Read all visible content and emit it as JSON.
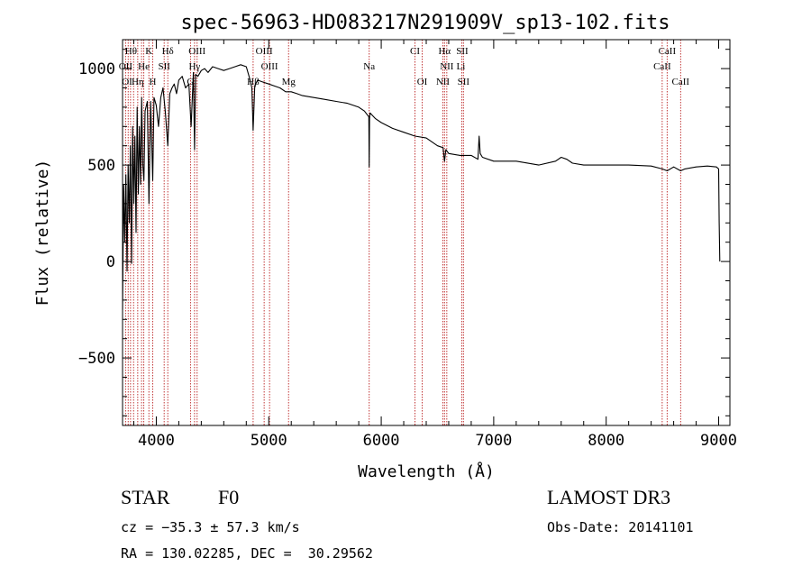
{
  "chart_data": {
    "type": "line",
    "title": "spec-56963-HD083217N291909V_sp13-102.fits",
    "xlabel": "Wavelength (Å)",
    "ylabel": "Flux (relative)",
    "xlim": [
      3700,
      9100
    ],
    "ylim": [
      -850,
      1150
    ],
    "xticks": [
      4000,
      5000,
      6000,
      7000,
      8000,
      9000
    ],
    "yticks": [
      -500,
      0,
      500,
      1000
    ],
    "xtick_labels": [
      "4000",
      "5000",
      "6000",
      "7000",
      "8000",
      "9000"
    ],
    "ytick_labels": [
      "−500",
      "0",
      "500",
      "1000"
    ],
    "series": [
      {
        "name": "flux",
        "color": "#000000",
        "x": [
          3700,
          3710,
          3720,
          3730,
          3740,
          3750,
          3760,
          3770,
          3780,
          3790,
          3800,
          3810,
          3820,
          3830,
          3840,
          3850,
          3860,
          3870,
          3880,
          3890,
          3900,
          3920,
          3935,
          3950,
          3968,
          3980,
          4000,
          4020,
          4040,
          4060,
          4080,
          4102,
          4120,
          4140,
          4160,
          4180,
          4200,
          4230,
          4260,
          4290,
          4310,
          4330,
          4340,
          4350,
          4370,
          4400,
          4430,
          4460,
          4500,
          4550,
          4600,
          4650,
          4700,
          4750,
          4800,
          4830,
          4850,
          4861,
          4875,
          4900,
          4950,
          5000,
          5050,
          5100,
          5150,
          5200,
          5250,
          5300,
          5400,
          5500,
          5600,
          5700,
          5800,
          5850,
          5890,
          5893,
          5896,
          5900,
          5950,
          6000,
          6100,
          6200,
          6300,
          6400,
          6500,
          6550,
          6563,
          6575,
          6600,
          6700,
          6800,
          6860,
          6870,
          6880,
          6900,
          7000,
          7200,
          7400,
          7550,
          7600,
          7650,
          7700,
          7800,
          8000,
          8200,
          8400,
          8498,
          8542,
          8600,
          8662,
          8700,
          8800,
          8900,
          8980,
          9000,
          9005,
          9010
        ],
        "y": [
          -250,
          400,
          100,
          450,
          -50,
          500,
          200,
          600,
          -10,
          700,
          300,
          650,
          150,
          800,
          350,
          700,
          400,
          850,
          500,
          420,
          780,
          830,
          300,
          830,
          420,
          850,
          810,
          700,
          850,
          900,
          780,
          600,
          870,
          900,
          920,
          870,
          940,
          960,
          900,
          920,
          700,
          980,
          580,
          970,
          960,
          990,
          1000,
          980,
          1010,
          1000,
          990,
          1000,
          1010,
          1020,
          1010,
          950,
          900,
          680,
          910,
          940,
          930,
          920,
          910,
          900,
          880,
          880,
          870,
          860,
          850,
          840,
          830,
          820,
          800,
          780,
          750,
          490,
          740,
          770,
          740,
          720,
          690,
          670,
          650,
          640,
          600,
          590,
          520,
          580,
          560,
          550,
          550,
          530,
          650,
          560,
          540,
          520,
          520,
          500,
          520,
          540,
          530,
          510,
          500,
          500,
          500,
          495,
          480,
          470,
          490,
          470,
          480,
          490,
          495,
          490,
          480,
          200,
          0
        ]
      }
    ],
    "reference_lines": {
      "wavelengths": [
        3727,
        3750,
        3771,
        3798,
        3835,
        3869,
        3889,
        3934,
        3968,
        4070,
        4102,
        4304,
        4340,
        4363,
        4861,
        4959,
        5007,
        5176,
        5893,
        6300,
        6364,
        6548,
        6563,
        6583,
        6717,
        6731,
        8498,
        8542,
        8662
      ],
      "color": "#bb2222"
    },
    "line_labels": [
      {
        "text": "Hθ",
        "x": 3775,
        "row": 1
      },
      {
        "text": "K",
        "x": 3934,
        "row": 1
      },
      {
        "text": "Hδ",
        "x": 4102,
        "row": 1
      },
      {
        "text": "OIII",
        "x": 4363,
        "row": 1
      },
      {
        "text": "OIII",
        "x": 4959,
        "row": 1
      },
      {
        "text": "CI",
        "x": 6300,
        "row": 1
      },
      {
        "text": "Hα",
        "x": 6563,
        "row": 1
      },
      {
        "text": "SII",
        "x": 6720,
        "row": 1
      },
      {
        "text": "CaII",
        "x": 8542,
        "row": 1
      },
      {
        "text": "OII",
        "x": 3727,
        "row": 2
      },
      {
        "text": "He",
        "x": 3889,
        "row": 2
      },
      {
        "text": "SII",
        "x": 4070,
        "row": 2
      },
      {
        "text": "Hγ",
        "x": 4340,
        "row": 2
      },
      {
        "text": "OIII",
        "x": 5007,
        "row": 2
      },
      {
        "text": "Na",
        "x": 5893,
        "row": 2
      },
      {
        "text": "NII",
        "x": 6583,
        "row": 2
      },
      {
        "text": "Li",
        "x": 6708,
        "row": 2
      },
      {
        "text": "CaII",
        "x": 8498,
        "row": 2
      },
      {
        "text": "OI",
        "x": 3740,
        "row": 3
      },
      {
        "text": "Hη",
        "x": 3835,
        "row": 3
      },
      {
        "text": "H",
        "x": 3968,
        "row": 3
      },
      {
        "text": "G",
        "x": 4304,
        "row": 3
      },
      {
        "text": "Hβ",
        "x": 4861,
        "row": 3
      },
      {
        "text": "Mg",
        "x": 5176,
        "row": 3
      },
      {
        "text": "OI",
        "x": 6364,
        "row": 3
      },
      {
        "text": "NII",
        "x": 6548,
        "row": 3
      },
      {
        "text": "SII",
        "x": 6731,
        "row": 3
      },
      {
        "text": "CaII",
        "x": 8662,
        "row": 3
      }
    ]
  },
  "info": {
    "object_class": "STAR",
    "subclass": "F0",
    "survey": "LAMOST DR3",
    "redshift": "cz = −35.3 ± 57.3 km/s",
    "obs_date": "Obs-Date: 20141101",
    "coords": "RA = 130.02285, DEC =  30.29562"
  }
}
